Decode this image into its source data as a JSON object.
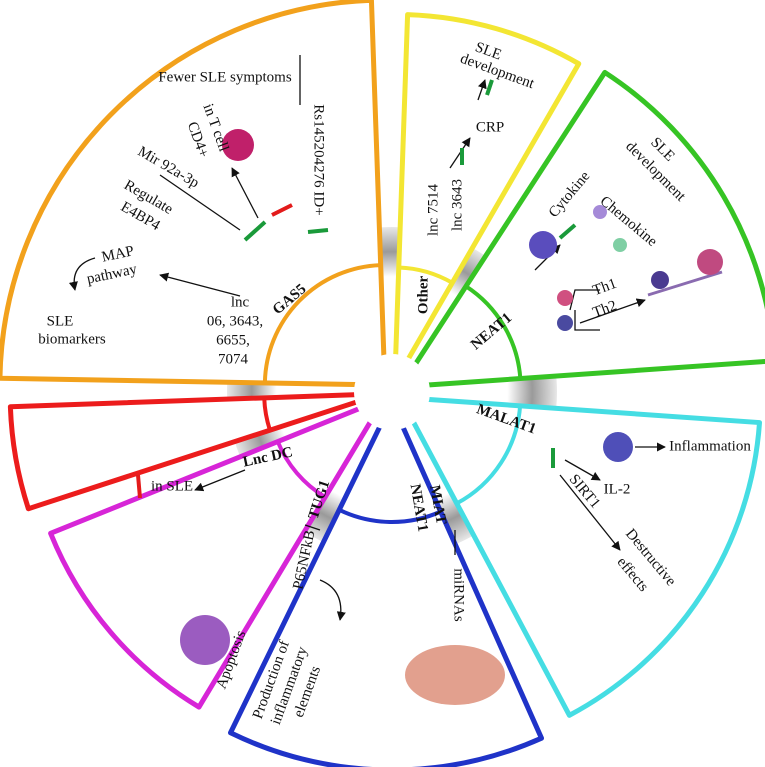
{
  "sectors": [
    {
      "label": "GAS5",
      "texts": [
        "Fewer SLE symptoms",
        "Rs145204276 ID+",
        "in T cell",
        "CD4+",
        "Mir 92a-3p",
        "Regulate",
        "E4BP4",
        "MAP",
        "pathway",
        "SLE",
        "biomarkers",
        "lnc",
        "06, 3643,",
        "6655,",
        "7074"
      ]
    },
    {
      "label": "Other",
      "texts": [
        "lnc 7514",
        "lnc 3643",
        "CRP",
        "SLE",
        "development"
      ]
    },
    {
      "label": "NEAT1",
      "texts": [
        "Cytokine",
        "SLE",
        "development",
        "Chemokine",
        "Th1",
        "Th2"
      ]
    },
    {
      "label": "MALAT1",
      "texts": [
        "Inflammation",
        "IL-2",
        "SIRT1",
        "Destructive",
        "effects"
      ]
    },
    {
      "label": "MIAT",
      "label2": "NEAT1",
      "texts": [
        "miRNAs"
      ]
    },
    {
      "label": "TUG1",
      "texts": [
        "P65NFkB",
        "Apoptosis",
        "Production of",
        "inflammatory",
        "elements"
      ]
    },
    {
      "label": "Lnc DC",
      "texts": [
        "in SLE"
      ]
    }
  ]
}
